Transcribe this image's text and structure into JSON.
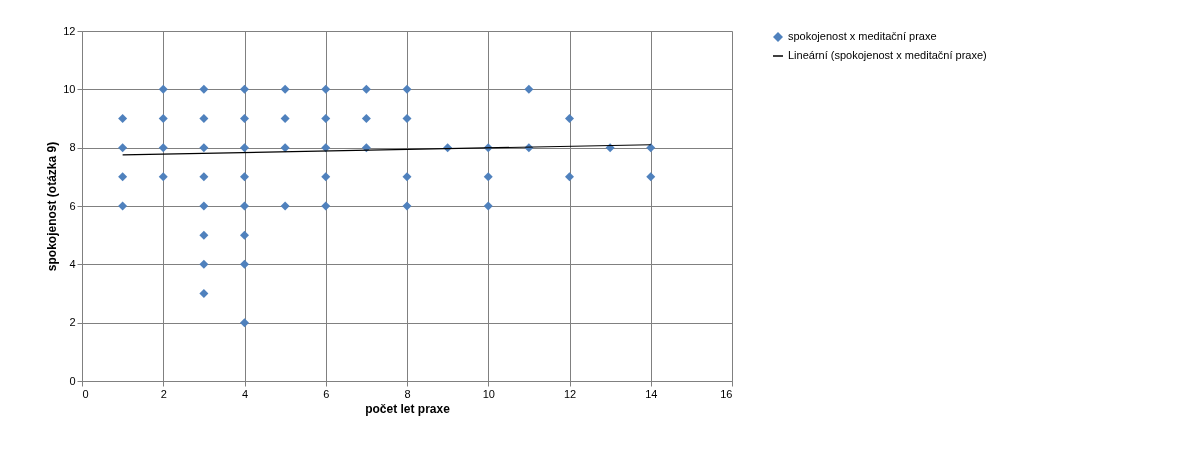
{
  "chart_data": {
    "type": "scatter",
    "xlabel": "počet let praxe",
    "ylabel": "spokojenost  (otázka 9)",
    "xlim": [
      0,
      16
    ],
    "xticks": [
      0,
      2,
      4,
      6,
      8,
      10,
      12,
      14,
      16
    ],
    "ylim": [
      0,
      12
    ],
    "yticks": [
      0,
      2,
      4,
      6,
      8,
      10,
      12
    ],
    "grid": true,
    "legend": "right",
    "series": [
      {
        "name": "spokojenost x meditační praxe",
        "color": "#4f81bd",
        "marker": "diamond",
        "x": [
          1,
          1,
          1,
          1,
          2,
          2,
          2,
          2,
          3,
          3,
          3,
          3,
          3,
          3,
          3,
          3,
          4,
          4,
          4,
          4,
          4,
          4,
          4,
          4,
          5,
          5,
          5,
          5,
          6,
          6,
          6,
          6,
          6,
          7,
          7,
          7,
          8,
          8,
          8,
          8,
          9,
          10,
          10,
          10,
          11,
          11,
          12,
          12,
          13,
          14,
          14
        ],
        "values": [
          9,
          8,
          7,
          6,
          10,
          9,
          8,
          7,
          10,
          9,
          8,
          7,
          6,
          5,
          4,
          3,
          10,
          9,
          8,
          7,
          6,
          5,
          4,
          2,
          10,
          9,
          8,
          6,
          10,
          9,
          8,
          7,
          6,
          10,
          9,
          8,
          10,
          9,
          7,
          6,
          8,
          8,
          7,
          6,
          10,
          8,
          9,
          7,
          8,
          8,
          7
        ]
      },
      {
        "name": "Lineární (spokojenost x meditační praxe)",
        "color": "#000000",
        "type": "line",
        "line_style": "solid",
        "marker": "none",
        "x": [
          1,
          14
        ],
        "values": [
          7.75,
          8.1
        ]
      }
    ]
  }
}
